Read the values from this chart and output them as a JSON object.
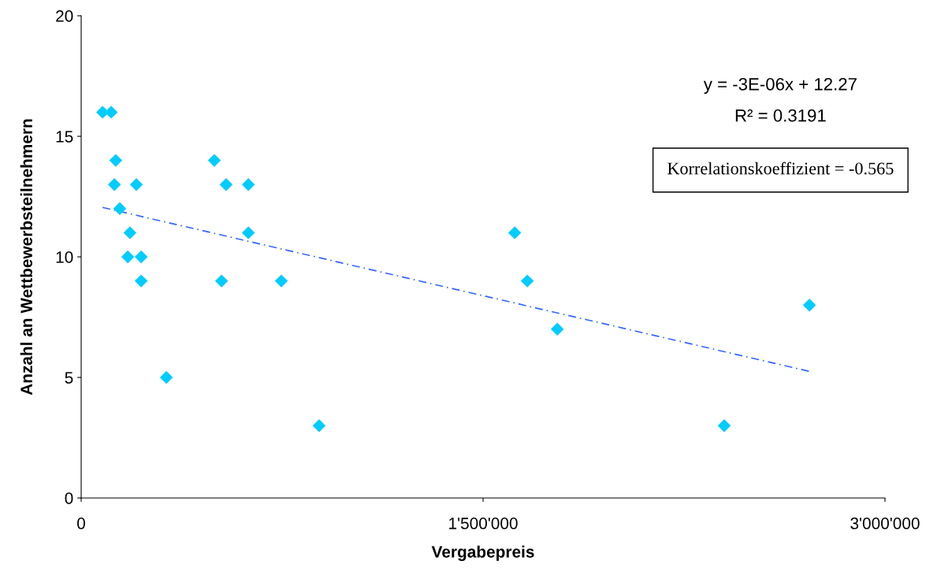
{
  "chart_data": {
    "type": "scatter",
    "xlabel": "Vergabepreis",
    "ylabel": "Anzahl an Wettbewerbsteilnehmern",
    "xlim": [
      0,
      3000000
    ],
    "ylim": [
      0,
      20
    ],
    "xticks": [
      0,
      {
        "value": 1500000,
        "label": "1'500'000"
      },
      {
        "value": 3000000,
        "label": "3'000'000"
      }
    ],
    "yticks": [
      0,
      5,
      10,
      15,
      20
    ],
    "grid": false,
    "legend": false,
    "annotations": [
      "y = -3E-06x + 12.27",
      "R² = 0.3191",
      "Korrelationskoeffizient = -0.565"
    ],
    "series": [
      {
        "color": "#00ccff",
        "marker": "diamond",
        "x": [
          80000,
          112000,
          129000,
          124000,
          144000,
          182000,
          174000,
          206000,
          224000,
          224000,
          318000,
          497000,
          541000,
          524000,
          624000,
          624000,
          747000,
          888000,
          1618000,
          1665000,
          1777000,
          2400000,
          2718000
        ],
        "values": [
          16,
          16,
          14,
          13,
          12,
          11,
          10,
          13,
          10,
          9,
          5,
          14,
          13,
          9,
          13,
          11,
          9,
          3,
          11,
          9,
          7,
          3,
          8
        ]
      },
      {
        "type": "line",
        "color": "#3366ff",
        "marker": "none",
        "line_style": "dashed",
        "x": [
          80000,
          2718000
        ],
        "values": [
          12.05,
          5.25
        ]
      }
    ]
  }
}
